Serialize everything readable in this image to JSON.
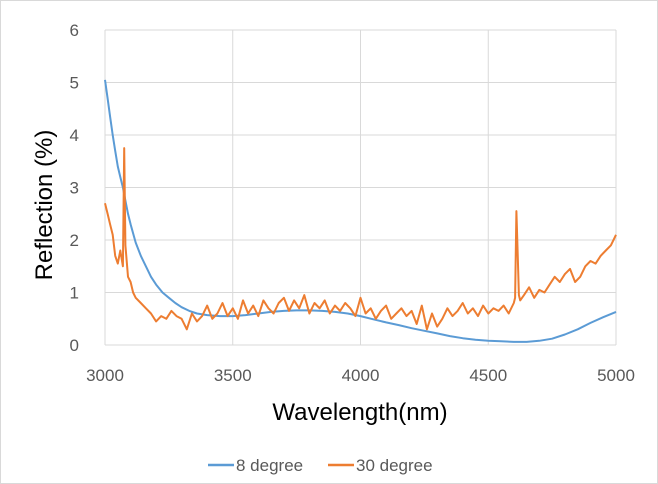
{
  "chart_data": {
    "type": "line",
    "title": "",
    "xlabel": "Wavelength(nm)",
    "ylabel": "Reflection (%)",
    "xlim": [
      3000,
      5000
    ],
    "ylim": [
      0,
      6
    ],
    "x_ticks": [
      "3000",
      "3500",
      "4000",
      "4500",
      "5000"
    ],
    "y_ticks": [
      "0",
      "1",
      "2",
      "3",
      "4",
      "5",
      "6"
    ],
    "grid": true,
    "legend_position": "bottom",
    "series": [
      {
        "name": "8 degree",
        "color": "#5b9bd5",
        "x": [
          3000,
          3010,
          3020,
          3030,
          3040,
          3050,
          3060,
          3070,
          3080,
          3090,
          3100,
          3120,
          3140,
          3160,
          3180,
          3200,
          3225,
          3250,
          3275,
          3300,
          3330,
          3360,
          3400,
          3450,
          3500,
          3550,
          3600,
          3650,
          3700,
          3750,
          3800,
          3850,
          3900,
          3950,
          4000,
          4050,
          4100,
          4150,
          4200,
          4250,
          4300,
          4350,
          4400,
          4450,
          4500,
          4550,
          4600,
          4650,
          4700,
          4750,
          4800,
          4850,
          4900,
          4950,
          5000
        ],
        "y": [
          5.05,
          4.7,
          4.35,
          4.0,
          3.7,
          3.4,
          3.2,
          3.0,
          2.75,
          2.5,
          2.3,
          1.95,
          1.7,
          1.5,
          1.3,
          1.15,
          1.0,
          0.9,
          0.8,
          0.72,
          0.65,
          0.6,
          0.57,
          0.55,
          0.55,
          0.57,
          0.6,
          0.63,
          0.65,
          0.66,
          0.66,
          0.65,
          0.63,
          0.6,
          0.55,
          0.49,
          0.43,
          0.38,
          0.32,
          0.27,
          0.22,
          0.17,
          0.13,
          0.1,
          0.08,
          0.07,
          0.06,
          0.06,
          0.08,
          0.12,
          0.2,
          0.3,
          0.42,
          0.53,
          0.63
        ]
      },
      {
        "name": "30 degree",
        "color": "#ed7d31",
        "x": [
          3000,
          3010,
          3020,
          3030,
          3040,
          3050,
          3060,
          3070,
          3075,
          3080,
          3085,
          3090,
          3100,
          3110,
          3120,
          3140,
          3160,
          3180,
          3200,
          3220,
          3240,
          3260,
          3280,
          3300,
          3320,
          3340,
          3360,
          3380,
          3400,
          3420,
          3440,
          3460,
          3480,
          3500,
          3520,
          3540,
          3560,
          3580,
          3600,
          3620,
          3640,
          3660,
          3680,
          3700,
          3720,
          3740,
          3760,
          3780,
          3800,
          3820,
          3840,
          3860,
          3880,
          3900,
          3920,
          3940,
          3960,
          3980,
          4000,
          4020,
          4040,
          4060,
          4080,
          4100,
          4120,
          4140,
          4160,
          4180,
          4200,
          4220,
          4240,
          4260,
          4280,
          4300,
          4320,
          4340,
          4360,
          4380,
          4400,
          4420,
          4440,
          4460,
          4480,
          4500,
          4520,
          4540,
          4560,
          4580,
          4600,
          4605,
          4610,
          4615,
          4620,
          4625,
          4640,
          4660,
          4680,
          4700,
          4720,
          4740,
          4760,
          4780,
          4800,
          4820,
          4840,
          4860,
          4880,
          4900,
          4920,
          4940,
          4960,
          4980,
          5000
        ],
        "y": [
          2.7,
          2.5,
          2.3,
          2.1,
          1.7,
          1.55,
          1.8,
          1.5,
          3.75,
          1.9,
          1.6,
          1.3,
          1.2,
          1.0,
          0.9,
          0.8,
          0.7,
          0.6,
          0.45,
          0.55,
          0.5,
          0.65,
          0.55,
          0.5,
          0.3,
          0.6,
          0.45,
          0.55,
          0.75,
          0.5,
          0.6,
          0.8,
          0.55,
          0.7,
          0.5,
          0.85,
          0.6,
          0.75,
          0.55,
          0.85,
          0.7,
          0.6,
          0.8,
          0.9,
          0.65,
          0.85,
          0.7,
          0.95,
          0.6,
          0.8,
          0.7,
          0.85,
          0.6,
          0.75,
          0.65,
          0.8,
          0.7,
          0.55,
          0.9,
          0.6,
          0.7,
          0.5,
          0.65,
          0.75,
          0.5,
          0.6,
          0.7,
          0.55,
          0.65,
          0.4,
          0.75,
          0.3,
          0.6,
          0.35,
          0.5,
          0.7,
          0.55,
          0.65,
          0.8,
          0.6,
          0.7,
          0.55,
          0.75,
          0.6,
          0.7,
          0.65,
          0.75,
          0.6,
          0.8,
          0.9,
          2.55,
          1.8,
          0.95,
          0.85,
          0.95,
          1.1,
          0.9,
          1.05,
          1.0,
          1.15,
          1.3,
          1.2,
          1.35,
          1.45,
          1.2,
          1.3,
          1.5,
          1.6,
          1.55,
          1.7,
          1.8,
          1.9,
          2.1
        ]
      }
    ]
  }
}
